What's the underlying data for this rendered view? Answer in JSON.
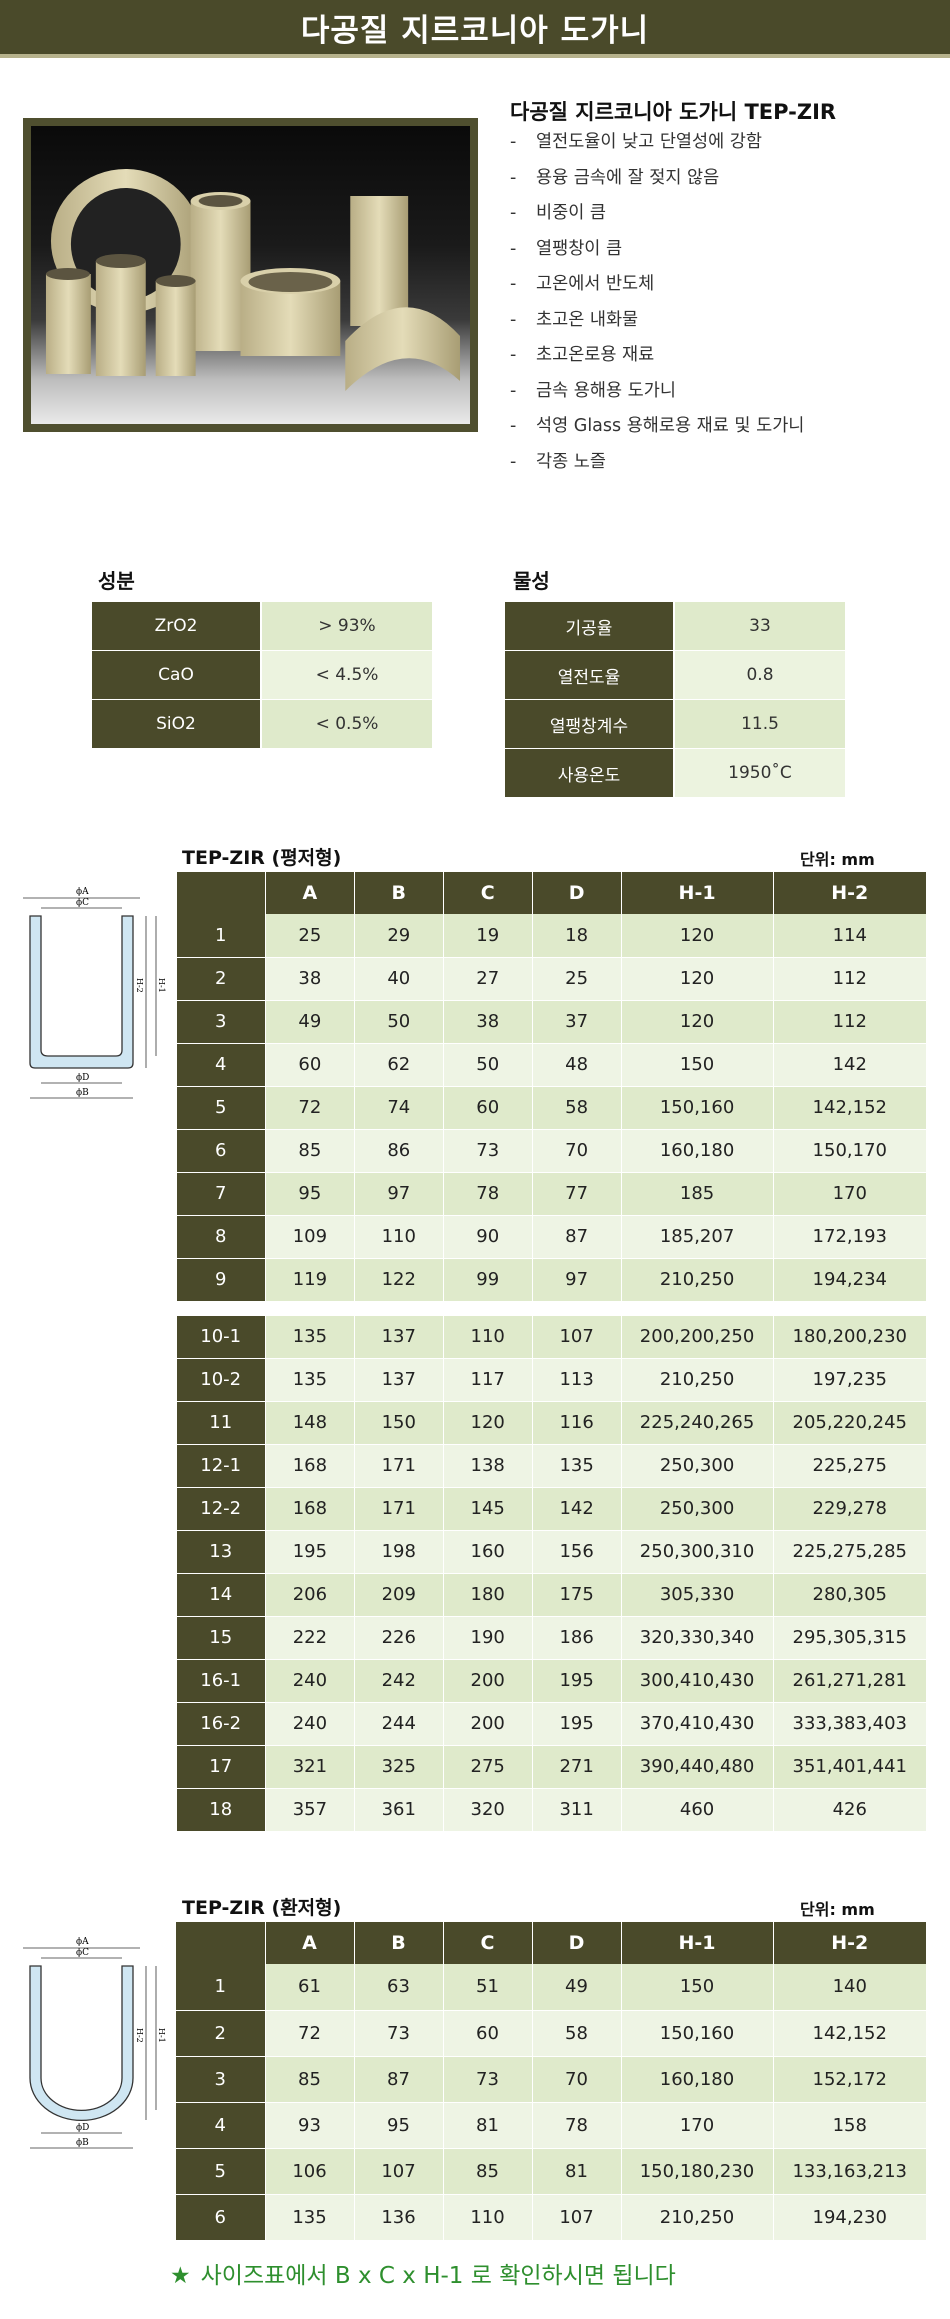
{
  "header": {
    "title": "다공질 지르코니아 도가니"
  },
  "product": {
    "title": "다공질 지르코니아 도가니 TEP-ZIR",
    "features": [
      "열전도율이 낮고 단열성에 강함",
      "용융 금속에 잘 젖지 않음",
      "비중이 큼",
      "열팽창이 큼",
      "고온에서 반도체",
      "초고온 내화물",
      "초고온로용 재료",
      "금속 용해용 도가니",
      "석영 Glass 용해로용 재료 및 도가니",
      "각종 노즐"
    ]
  },
  "composition": {
    "title": "성분",
    "rows": [
      {
        "key": "ZrO2",
        "value": "> 93%"
      },
      {
        "key": "CaO",
        "value": "< 4.5%"
      },
      {
        "key": "SiO2",
        "value": "< 0.5%"
      }
    ]
  },
  "properties": {
    "title": "물성",
    "rows": [
      {
        "key": "기공율",
        "value": "33"
      },
      {
        "key": "열전도율",
        "value": "0.8"
      },
      {
        "key": "열팽창계수",
        "value": "11.5"
      },
      {
        "key": "사용온도",
        "value": "1950˚C"
      }
    ]
  },
  "flat_table": {
    "title": "TEP-ZIR (평저형)",
    "unit": "단위: mm",
    "headers": [
      "",
      "A",
      "B",
      "C",
      "D",
      "H-1",
      "H-2"
    ],
    "rows": [
      [
        "1",
        "25",
        "29",
        "19",
        "18",
        "120",
        "114"
      ],
      [
        "2",
        "38",
        "40",
        "27",
        "25",
        "120",
        "112"
      ],
      [
        "3",
        "49",
        "50",
        "38",
        "37",
        "120",
        "112"
      ],
      [
        "4",
        "60",
        "62",
        "50",
        "48",
        "150",
        "142"
      ],
      [
        "5",
        "72",
        "74",
        "60",
        "58",
        "150,160",
        "142,152"
      ],
      [
        "6",
        "85",
        "86",
        "73",
        "70",
        "160,180",
        "150,170"
      ],
      [
        "7",
        "95",
        "97",
        "78",
        "77",
        "185",
        "170"
      ],
      [
        "8",
        "109",
        "110",
        "90",
        "87",
        "185,207",
        "172,193"
      ],
      [
        "9",
        "119",
        "122",
        "99",
        "97",
        "210,250",
        "194,234"
      ],
      [
        "10-1",
        "135",
        "137",
        "110",
        "107",
        "200,200,250",
        "180,200,230"
      ],
      [
        "10-2",
        "135",
        "137",
        "117",
        "113",
        "210,250",
        "197,235"
      ],
      [
        "11",
        "148",
        "150",
        "120",
        "116",
        "225,240,265",
        "205,220,245"
      ],
      [
        "12-1",
        "168",
        "171",
        "138",
        "135",
        "250,300",
        "225,275"
      ],
      [
        "12-2",
        "168",
        "171",
        "145",
        "142",
        "250,300",
        "229,278"
      ],
      [
        "13",
        "195",
        "198",
        "160",
        "156",
        "250,300,310",
        "225,275,285"
      ],
      [
        "14",
        "206",
        "209",
        "180",
        "175",
        "305,330",
        "280,305"
      ],
      [
        "15",
        "222",
        "226",
        "190",
        "186",
        "320,330,340",
        "295,305,315"
      ],
      [
        "16-1",
        "240",
        "242",
        "200",
        "195",
        "300,410,430",
        "261,271,281"
      ],
      [
        "16-2",
        "240",
        "244",
        "200",
        "195",
        "370,410,430",
        "333,383,403"
      ],
      [
        "17",
        "321",
        "325",
        "275",
        "271",
        "390,440,480",
        "351,401,441"
      ],
      [
        "18",
        "357",
        "361",
        "320",
        "311",
        "460",
        "426"
      ]
    ]
  },
  "round_table": {
    "title": "TEP-ZIR (환저형)",
    "unit": "단위: mm",
    "headers": [
      "",
      "A",
      "B",
      "C",
      "D",
      "H-1",
      "H-2"
    ],
    "rows": [
      [
        "1",
        "61",
        "63",
        "51",
        "49",
        "150",
        "140"
      ],
      [
        "2",
        "72",
        "73",
        "60",
        "58",
        "150,160",
        "142,152"
      ],
      [
        "3",
        "85",
        "87",
        "73",
        "70",
        "160,180",
        "152,172"
      ],
      [
        "4",
        "93",
        "95",
        "81",
        "78",
        "170",
        "158"
      ],
      [
        "5",
        "106",
        "107",
        "85",
        "81",
        "150,180,230",
        "133,163,213"
      ],
      [
        "6",
        "135",
        "136",
        "110",
        "107",
        "210,250",
        "194,230"
      ]
    ]
  },
  "diagram_labels": {
    "A": "ϕA",
    "B": "ϕB",
    "C": "ϕC",
    "D": "ϕD",
    "H1": "H-1",
    "H2": "H-2"
  },
  "note": {
    "text": "사이즈표에서 B x C x H-1 로 확인하시면 됩니다"
  }
}
